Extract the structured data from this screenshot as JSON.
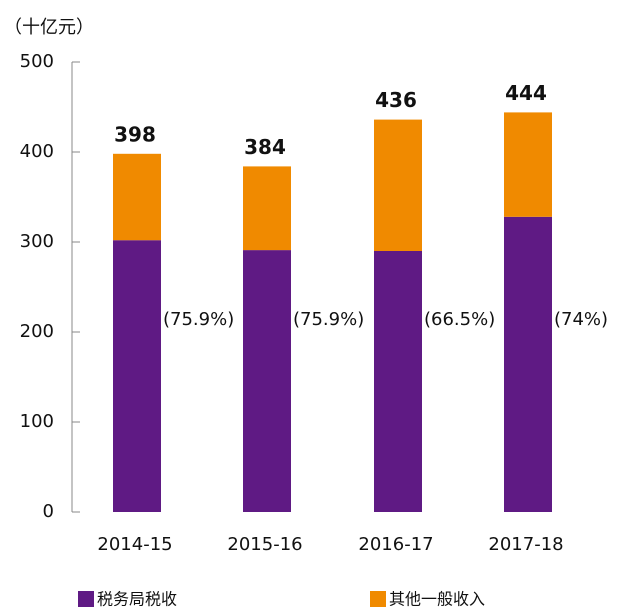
{
  "chart_data": {
    "type": "stacked_bar",
    "y_axis_label": "（十亿元）",
    "categories": [
      "2014-15",
      "2015-16",
      "2016-17",
      "2017-18"
    ],
    "series": [
      {
        "name": "税务局税收",
        "color": "#5f1a84",
        "values": [
          302,
          291,
          290,
          328
        ]
      },
      {
        "name": "其他一般收入",
        "color": "#f08a00",
        "values": [
          96,
          93,
          146,
          116
        ]
      }
    ],
    "totals": [
      398,
      384,
      436,
      444
    ],
    "share_labels": [
      "(75.9%)",
      "(75.9%)",
      "(66.5%)",
      "(74%)"
    ],
    "ylim": [
      0,
      500
    ],
    "yticks": [
      0,
      100,
      200,
      300,
      400,
      500
    ],
    "legend": "bottom"
  }
}
